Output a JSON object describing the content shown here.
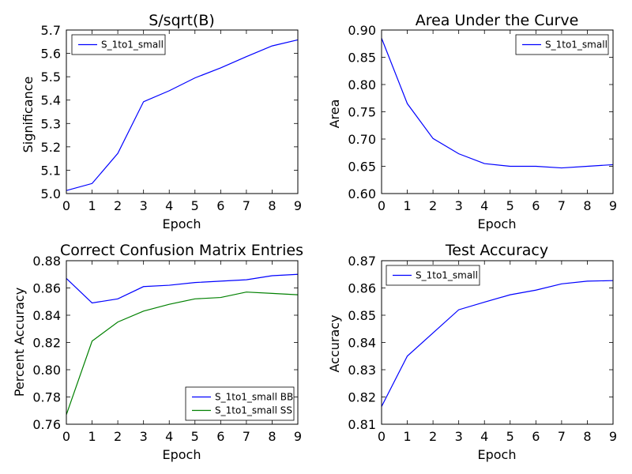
{
  "colors": {
    "blue": "#0000ff",
    "green": "#008000",
    "axis": "#000000",
    "background": "#ffffff"
  },
  "chart_data": [
    {
      "type": "line",
      "title": "S/sqrt(B)",
      "xlabel": "Epoch",
      "ylabel": "Significance",
      "xlim": [
        0,
        9
      ],
      "ylim": [
        5.0,
        5.7
      ],
      "x_ticks": [
        0,
        1,
        2,
        3,
        4,
        5,
        6,
        7,
        8,
        9
      ],
      "y_ticks": [
        5.0,
        5.1,
        5.2,
        5.3,
        5.4,
        5.5,
        5.6,
        5.7
      ],
      "y_tick_decimals": 1,
      "grid": false,
      "legend_position": "upper-left",
      "x": [
        0,
        1,
        2,
        3,
        4,
        5,
        6,
        7,
        8,
        9
      ],
      "series": [
        {
          "name": "S_1to1_small",
          "color": "#0000ff",
          "values": [
            5.013,
            5.043,
            5.172,
            5.393,
            5.44,
            5.495,
            5.538,
            5.586,
            5.632,
            5.658
          ]
        }
      ]
    },
    {
      "type": "line",
      "title": "Area Under the Curve",
      "xlabel": "Epoch",
      "ylabel": "Area",
      "xlim": [
        0,
        9
      ],
      "ylim": [
        0.6,
        0.9
      ],
      "x_ticks": [
        0,
        1,
        2,
        3,
        4,
        5,
        6,
        7,
        8,
        9
      ],
      "y_ticks": [
        0.6,
        0.65,
        0.7,
        0.75,
        0.8,
        0.85,
        0.9
      ],
      "y_tick_decimals": 2,
      "grid": false,
      "legend_position": "upper-right",
      "x": [
        0,
        1,
        2,
        3,
        4,
        5,
        6,
        7,
        8,
        9
      ],
      "series": [
        {
          "name": "S_1to1_small",
          "color": "#0000ff",
          "values": [
            0.885,
            0.765,
            0.701,
            0.673,
            0.655,
            0.65,
            0.65,
            0.647,
            0.65,
            0.653
          ]
        }
      ]
    },
    {
      "type": "line",
      "title": "Correct Confusion Matrix Entries",
      "xlabel": "Epoch",
      "ylabel": "Percent Accuracy",
      "xlim": [
        0,
        9
      ],
      "ylim": [
        0.76,
        0.88
      ],
      "x_ticks": [
        0,
        1,
        2,
        3,
        4,
        5,
        6,
        7,
        8,
        9
      ],
      "y_ticks": [
        0.76,
        0.78,
        0.8,
        0.82,
        0.84,
        0.86,
        0.88
      ],
      "y_tick_decimals": 2,
      "grid": false,
      "legend_position": "lower-right",
      "x": [
        0,
        1,
        2,
        3,
        4,
        5,
        6,
        7,
        8,
        9
      ],
      "series": [
        {
          "name": "S_1to1_small BB",
          "color": "#0000ff",
          "values": [
            0.867,
            0.849,
            0.852,
            0.861,
            0.862,
            0.864,
            0.865,
            0.866,
            0.869,
            0.87
          ]
        },
        {
          "name": "S_1to1_small SS",
          "color": "#008000",
          "values": [
            0.767,
            0.821,
            0.835,
            0.843,
            0.848,
            0.852,
            0.853,
            0.857,
            0.856,
            0.855
          ]
        }
      ]
    },
    {
      "type": "line",
      "title": "Test Accuracy",
      "xlabel": "Epoch",
      "ylabel": "Accuracy",
      "xlim": [
        0,
        9
      ],
      "ylim": [
        0.81,
        0.87
      ],
      "x_ticks": [
        0,
        1,
        2,
        3,
        4,
        5,
        6,
        7,
        8,
        9
      ],
      "y_ticks": [
        0.81,
        0.82,
        0.83,
        0.84,
        0.85,
        0.86,
        0.87
      ],
      "y_tick_decimals": 2,
      "grid": false,
      "legend_position": "upper-left",
      "x": [
        0,
        1,
        2,
        3,
        4,
        5,
        6,
        7,
        8,
        9
      ],
      "series": [
        {
          "name": "S_1to1_small",
          "color": "#0000ff",
          "values": [
            0.8165,
            0.835,
            0.8435,
            0.852,
            0.8548,
            0.8575,
            0.8592,
            0.8615,
            0.8625,
            0.8627
          ]
        }
      ]
    }
  ]
}
